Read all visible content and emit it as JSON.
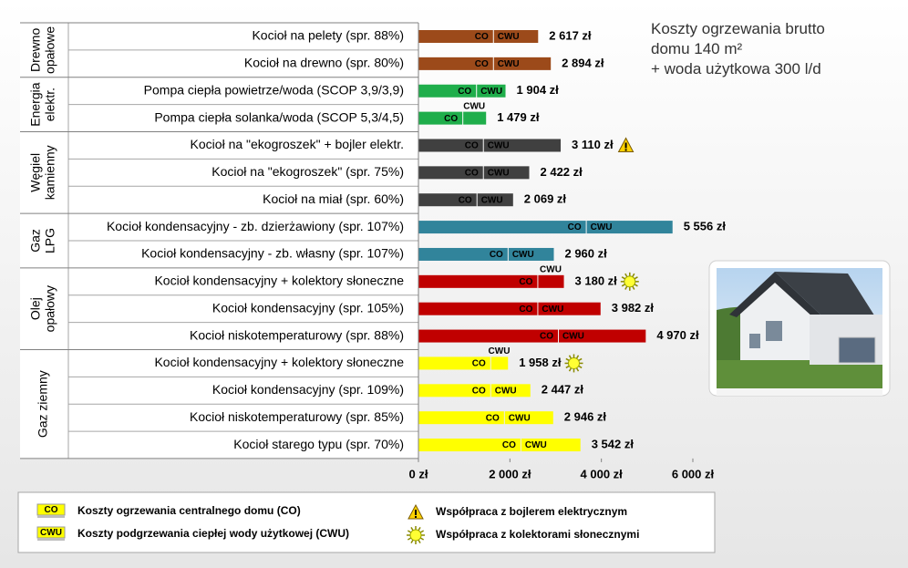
{
  "chart_data": {
    "type": "grouped-stacked-hbar",
    "title": [
      "Koszty ogrzewania brutto",
      "domu 140 m²",
      "+ woda użytkowa 300 l/d"
    ],
    "series": [
      {
        "name": "CO",
        "label": "Koszty ogrzewania centralnego domu (CO)",
        "color": "#ffff00"
      },
      {
        "name": "CWU",
        "label": "Koszty podgrzewania ciepłej wody użytkowej (CWU)",
        "color": "#ffff00"
      }
    ],
    "notes": [
      {
        "icon": "boiler",
        "label": "Współpraca z bojlerem elektrycznym"
      },
      {
        "icon": "solar",
        "label": "Współpraca z kolektorami słonecznymi"
      }
    ],
    "xlim": [
      0,
      6000
    ],
    "xticks": [
      {
        "value": 0,
        "label": "0 zł"
      },
      {
        "value": 2000,
        "label": "2 000 zł"
      },
      {
        "value": 4000,
        "label": "4 000 zł"
      },
      {
        "value": 6000,
        "label": "6 000 zł"
      }
    ],
    "groups": [
      {
        "label": [
          "Drewno",
          "opałowe"
        ],
        "color": "#9c4a1a",
        "rows": [
          {
            "name": "Kocioł na pelety (spr. 88%)",
            "values": [
              1630,
              987
            ],
            "total": 2617,
            "total_label": "2 617 zł"
          },
          {
            "name": "Kocioł na drewno (spr. 80%)",
            "values": [
              1630,
              1264
            ],
            "total": 2894,
            "total_label": "2 894 zł"
          }
        ]
      },
      {
        "label": [
          "Energia",
          "elektr."
        ],
        "color": "#1fae4b",
        "rows": [
          {
            "name": "Pompa ciepła powietrze/woda (SCOP 3,9/3,9)",
            "values": [
              1260,
              644
            ],
            "total": 1904,
            "total_label": "1 904 zł"
          },
          {
            "name": "Pompa ciepła solanka/woda (SCOP 5,3/4,5)",
            "values": [
              960,
              519
            ],
            "total": 1479,
            "total_label": "1 479 zł"
          }
        ]
      },
      {
        "label": [
          "Węgiel",
          "kamienny"
        ],
        "color": "#404040",
        "rows": [
          {
            "name": "Kocioł na \"ekogroszek\" + bojler elektr.",
            "values": [
              1410,
              1700
            ],
            "total": 3110,
            "total_label": "3 110 zł",
            "badge": "boiler"
          },
          {
            "name": "Kocioł na \"ekogroszek\" (spr. 75%)",
            "values": [
              1410,
              1012
            ],
            "total": 2422,
            "total_label": "2 422 zł"
          },
          {
            "name": "Kocioł na miał (spr. 60%)",
            "values": [
              1270,
              799
            ],
            "total": 2069,
            "total_label": "2 069 zł"
          }
        ]
      },
      {
        "label": [
          "Gaz",
          "LPG"
        ],
        "color": "#31849b",
        "rows": [
          {
            "name": "Kocioł kondensacyjny - zb. dzierżawiony (spr. 107%)",
            "values": [
              3660,
              1896
            ],
            "total": 5556,
            "total_label": "5 556 zł"
          },
          {
            "name": "Kocioł kondensacyjny - zb. własny (spr. 107%)",
            "values": [
              1950,
              1010
            ],
            "total": 2960,
            "total_label": "2 960 zł"
          }
        ]
      },
      {
        "label": [
          "Olej",
          "opałowy"
        ],
        "color": "#c00000",
        "rows": [
          {
            "name": "Kocioł kondensacyjny + kolektory słoneczne",
            "values": [
              2600,
              580
            ],
            "total": 3180,
            "total_label": "3 180 zł",
            "badge": "solar"
          },
          {
            "name": "Kocioł kondensacyjny (spr. 105%)",
            "values": [
              2600,
              1382
            ],
            "total": 3982,
            "total_label": "3 982 zł"
          },
          {
            "name": "Kocioł niskotemperaturowy (spr. 88%)",
            "values": [
              3050,
              1920
            ],
            "total": 4970,
            "total_label": "4 970 zł"
          }
        ]
      },
      {
        "label": [
          "Gaz ziemny"
        ],
        "color": "#ffff00",
        "rows": [
          {
            "name": "Kocioł kondensacyjny + kolektory słoneczne",
            "values": [
              1570,
              388
            ],
            "total": 1958,
            "total_label": "1 958 zł",
            "badge": "solar"
          },
          {
            "name": "Kocioł kondensacyjny (spr. 109%)",
            "values": [
              1570,
              877
            ],
            "total": 2447,
            "total_label": "2 447 zł"
          },
          {
            "name": "Kocioł niskotemperaturowy (spr. 85%)",
            "values": [
              1870,
              1076
            ],
            "total": 2946,
            "total_label": "2 946 zł"
          },
          {
            "name": "Kocioł starego typu (spr. 70%)",
            "values": [
              2230,
              1312
            ],
            "total": 3542,
            "total_label": "3 542 zł"
          }
        ]
      }
    ]
  }
}
